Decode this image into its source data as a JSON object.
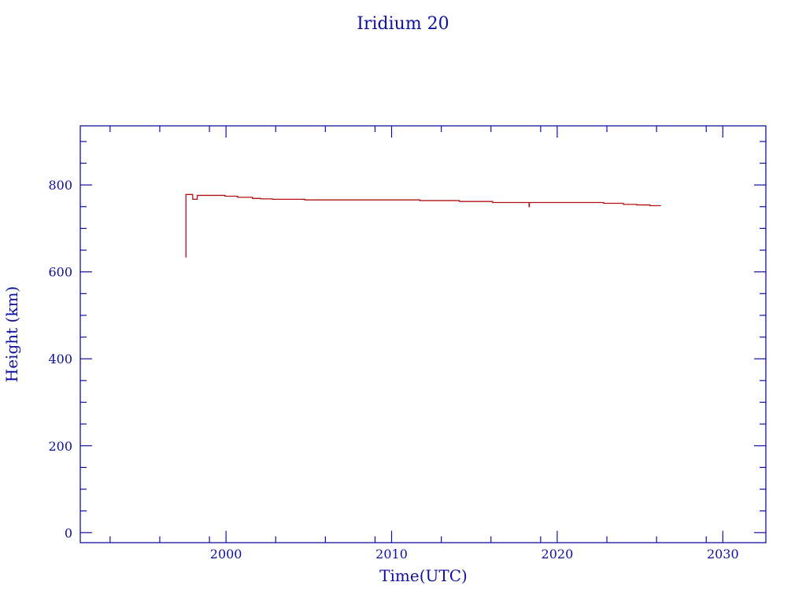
{
  "chart_data": {
    "type": "line",
    "title": "Iridium 20",
    "xlabel": "Time(UTC)",
    "ylabel": "Height (km)",
    "xlim": [
      1991.2,
      2032.6
    ],
    "ylim": [
      -23,
      936
    ],
    "x_ticks": [
      2000,
      2010,
      2020,
      2030
    ],
    "y_ticks": [
      0,
      200,
      400,
      600,
      800
    ],
    "grid": false,
    "colors": {
      "axis": "#1010a0",
      "line": "#b01010"
    },
    "series": [
      {
        "step": true,
        "x": [
          1997.56,
          1997.58,
          1997.99,
          1998.26,
          1999.94,
          2000.7,
          2001.6,
          2002.1,
          2002.8,
          2004.76,
          2011.7,
          2014.1,
          2016.1,
          2018.3,
          2018.32,
          2022.8,
          2024.0,
          2024.8,
          2025.6,
          2026.26
        ],
        "y": [
          634,
          778,
          767,
          776,
          774,
          771.6,
          769,
          768,
          767,
          765.6,
          764,
          762,
          759.6,
          750,
          759.6,
          757.8,
          755.3,
          754,
          752.4,
          752.4
        ]
      }
    ]
  }
}
